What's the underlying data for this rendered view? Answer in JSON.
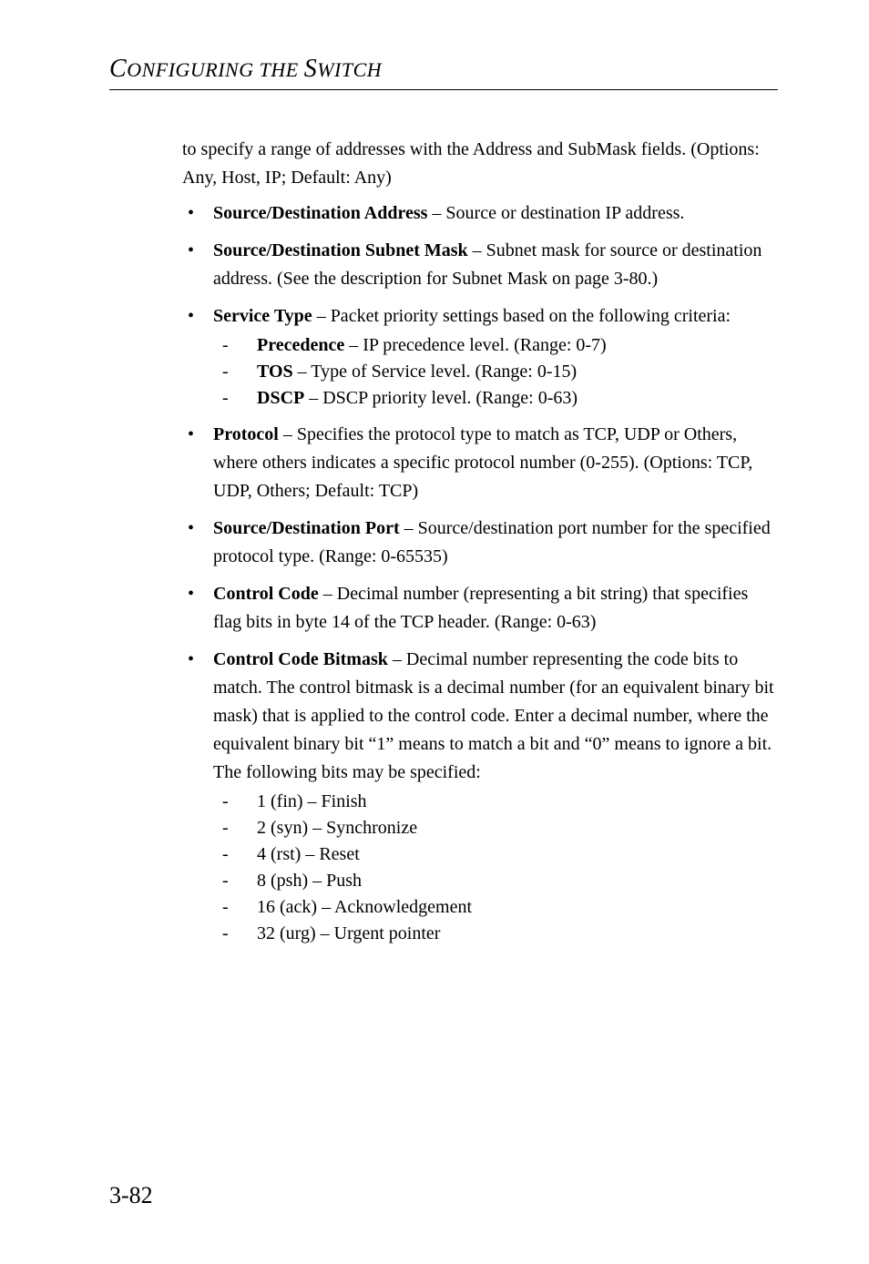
{
  "header": {
    "text_html": "<span class='bigC'>C</span>ONFIGURING THE <span class='bigS'>S</span>WITCH"
  },
  "intro": {
    "text": "to specify a range of addresses with the Address and SubMask fields. (Options: Any, Host, IP; Default: Any)"
  },
  "items": [
    {
      "html": "<b>Source/Destination Address</b> – Source or destination IP address."
    },
    {
      "html": "<b>Source/Destination Subnet Mask</b> – Subnet mask for source or destination address. (See the description for Subnet Mask on page 3-80.)"
    },
    {
      "html": "<b>Service Type</b> – Packet priority settings based on the following criteria:",
      "sub": [
        {
          "html": "<b>Precedence</b> – IP precedence level. (Range: 0-7)"
        },
        {
          "html": "<b>TOS</b> – Type of Service level. (Range: 0-15)"
        },
        {
          "html": "<b>DSCP</b> – DSCP priority level. (Range: 0-63)"
        }
      ]
    },
    {
      "html": "<b>Protocol</b> – Specifies the protocol type to match as TCP, UDP or Others, where others indicates a specific protocol number (0-255). (Options: TCP, UDP, Others; Default: TCP)"
    },
    {
      "html": "<b>Source/Destination Port</b> – Source/destination port number for the specified protocol type. (Range: 0-65535)"
    },
    {
      "html": "<b>Control Code</b> – Decimal number (representing a bit string) that specifies flag bits in byte 14 of the TCP header. (Range: 0-63)"
    },
    {
      "html": "<b>Control Code Bitmask</b> – Decimal number representing the code bits to match. The control bitmask is a decimal number (for an equivalent binary bit mask) that is applied to the control code. Enter a decimal number, where the equivalent binary bit “1” means to match a bit and “0” means to ignore a bit. The following bits may be specified:",
      "sub": [
        {
          "html": "1 (fin) – Finish"
        },
        {
          "html": "2 (syn) – Synchronize"
        },
        {
          "html": "4 (rst) – Reset"
        },
        {
          "html": "8 (psh) – Push"
        },
        {
          "html": "16 (ack) – Acknowledgement"
        },
        {
          "html": "32 (urg) – Urgent pointer"
        }
      ]
    }
  ],
  "footer": {
    "page_number": "3-82"
  }
}
